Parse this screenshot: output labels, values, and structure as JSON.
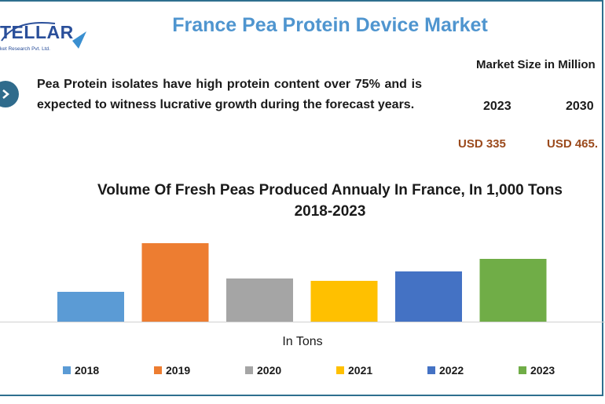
{
  "header": {
    "logo_text": "TELLAR",
    "logo_tagline": "ket Research Pvt. Ltd.",
    "title": "France Pea Protein Device Market"
  },
  "description": "Pea Protein isolates have high protein content over 75% and is expected to witness lucrative growth during the forecast years.",
  "market_size": {
    "title": "Market Size in Million",
    "years": [
      "2023",
      "2030"
    ],
    "values": [
      "USD 335",
      "USD 465."
    ]
  },
  "colors": {
    "title_blue": "#4f95cf",
    "value_brown": "#9b4a1c",
    "frame": "#2e6f8e"
  },
  "chart_data": {
    "type": "bar",
    "title": "Volume Of Fresh Peas Produced Annualy In France, In 1,000 Tons 2018-2023",
    "title_lines": [
      "Volume Of Fresh Peas Produced Annualy In France, In 1,000 Tons",
      "2018-2023"
    ],
    "xlabel": "In Tons",
    "ylabel": "",
    "categories": [
      "2018",
      "2019",
      "2020",
      "2021",
      "2022",
      "2023"
    ],
    "values": [
      38,
      100,
      55,
      52,
      64,
      80
    ],
    "colors": [
      "#5b9bd5",
      "#ed7d31",
      "#a5a5a5",
      "#ffc000",
      "#4472c4",
      "#70ad47"
    ],
    "ylim": [
      0,
      100
    ],
    "grid": false,
    "axis_labels_shown": false,
    "legend_position": "bottom"
  }
}
